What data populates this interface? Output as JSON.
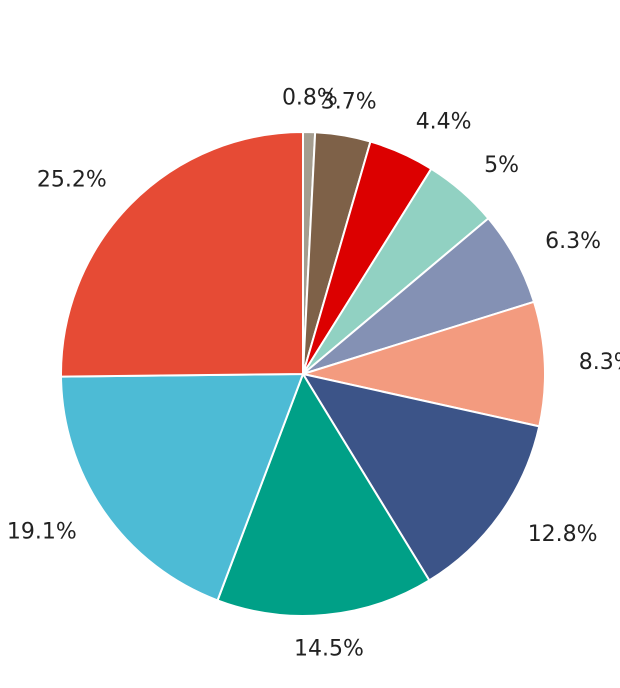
{
  "chart_data": {
    "type": "pie",
    "title": "",
    "start": "top",
    "direction": "clockwise",
    "slices": [
      {
        "label": "0.8%",
        "value": 0.8,
        "color": "#A59D8F"
      },
      {
        "label": "3.7%",
        "value": 3.7,
        "color": "#7E6148"
      },
      {
        "label": "4.4%",
        "value": 4.4,
        "color": "#DC0000"
      },
      {
        "label": "5%",
        "value": 5.0,
        "color": "#91D1C2"
      },
      {
        "label": "6.3%",
        "value": 6.3,
        "color": "#8491B4"
      },
      {
        "label": "8.3%",
        "value": 8.3,
        "color": "#F39B7F"
      },
      {
        "label": "12.8%",
        "value": 12.8,
        "color": "#3C5488"
      },
      {
        "label": "14.5%",
        "value": 14.5,
        "color": "#00A087"
      },
      {
        "label": "19.1%",
        "value": 19.1,
        "color": "#4DBBD5"
      },
      {
        "label": "25.2%",
        "value": 25.2,
        "color": "#E64B35"
      }
    ]
  }
}
